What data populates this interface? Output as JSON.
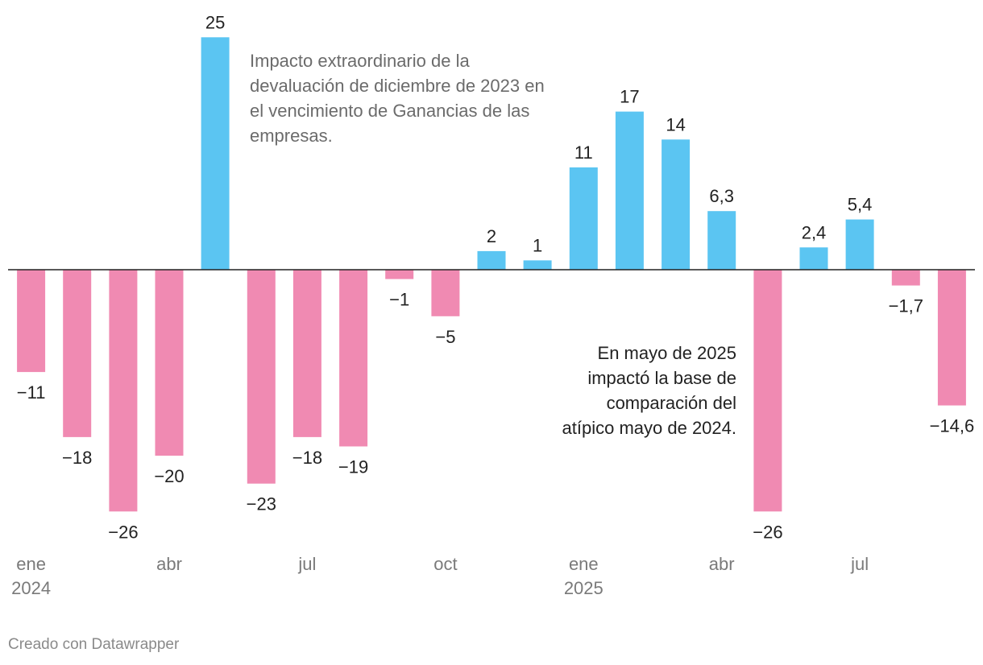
{
  "chart_data": {
    "type": "bar",
    "title": "",
    "xlabel": "",
    "ylabel": "",
    "ylim": [
      -30,
      26
    ],
    "grid": false,
    "categories": [
      "ene 2024",
      "feb 2024",
      "mar 2024",
      "abr 2024",
      "may 2024",
      "jun 2024",
      "jul 2024",
      "ago 2024",
      "sep 2024",
      "oct 2024",
      "nov 2024",
      "dic 2024",
      "ene 2025",
      "feb 2025",
      "mar 2025",
      "abr 2025",
      "may 2025",
      "jun 2025",
      "jul 2025",
      "ago 2025",
      "sep 2025"
    ],
    "values": [
      -11,
      -18,
      -26,
      -20,
      25,
      -23,
      -18,
      -19,
      -1,
      -5,
      2,
      1,
      11,
      17,
      14,
      6.3,
      -26,
      2.4,
      5.4,
      -1.7,
      -14.6
    ],
    "value_labels": [
      "−11",
      "−18",
      "−26",
      "−20",
      "25",
      "−23",
      "−18",
      "−19",
      "−1",
      "−5",
      "2",
      "1",
      "11",
      "17",
      "14",
      "6,3",
      "−26",
      "2,4",
      "5,4",
      "−1,7",
      "−14,6"
    ],
    "x_ticks": [
      {
        "index": 0,
        "line1": "ene",
        "line2": "2024"
      },
      {
        "index": 3,
        "line1": "abr",
        "line2": ""
      },
      {
        "index": 6,
        "line1": "jul",
        "line2": ""
      },
      {
        "index": 9,
        "line1": "oct",
        "line2": ""
      },
      {
        "index": 12,
        "line1": "ene",
        "line2": "2025"
      },
      {
        "index": 15,
        "line1": "abr",
        "line2": ""
      },
      {
        "index": 18,
        "line1": "jul",
        "line2": ""
      }
    ],
    "colors": {
      "positive": "#5bc5f2",
      "negative": "#f08ab2",
      "axis": "#222222"
    },
    "annotations": [
      {
        "text": "Impacto extraordinario de la\ndevaluación de diciembre de 2023 en\nel vencimiento de Ganancias de las\nempresas."
      },
      {
        "text": "En mayo de 2025\nimpactó la base de\ncomparación del\natípico mayo de 2024."
      }
    ]
  },
  "footer": {
    "credit": "Creado con Datawrapper"
  }
}
